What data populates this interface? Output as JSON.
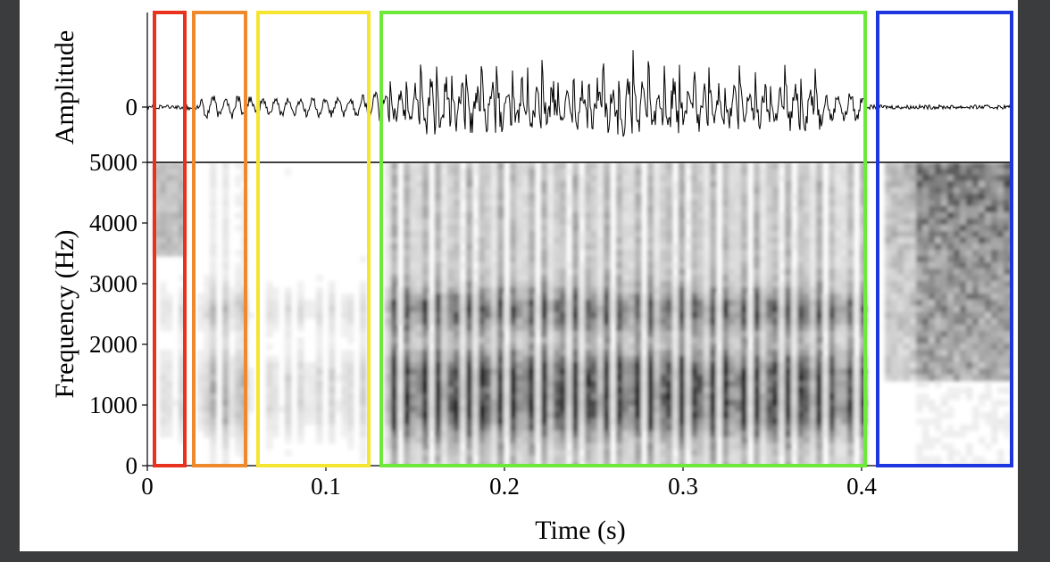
{
  "chart_data": [
    {
      "type": "line",
      "panel": "waveform",
      "ylabel": "Amplitude",
      "y_ticks": [
        {
          "value": 0,
          "label": "0"
        }
      ],
      "xlim": [
        0,
        0.485
      ],
      "ylim": [
        -1,
        1
      ],
      "segments": [
        {
          "t0": 0.0,
          "t1": 0.02,
          "amp": 0.04
        },
        {
          "t0": 0.02,
          "t1": 0.03,
          "amp": 0.06
        },
        {
          "t0": 0.03,
          "t1": 0.06,
          "amp": 0.35
        },
        {
          "t0": 0.06,
          "t1": 0.12,
          "amp": 0.28
        },
        {
          "t0": 0.12,
          "t1": 0.13,
          "amp": 0.45
        },
        {
          "t0": 0.13,
          "t1": 0.15,
          "amp": 0.6
        },
        {
          "t0": 0.15,
          "t1": 0.3,
          "amp": 1.0
        },
        {
          "t0": 0.3,
          "t1": 0.38,
          "amp": 0.8
        },
        {
          "t0": 0.38,
          "t1": 0.402,
          "amp": 0.45
        },
        {
          "t0": 0.402,
          "t1": 0.485,
          "amp": 0.04
        }
      ],
      "color": "#000000"
    },
    {
      "type": "heatmap",
      "panel": "spectrogram",
      "xlabel": "Time (s)",
      "ylabel": "Frequency (Hz)",
      "xlim": [
        0,
        0.485
      ],
      "ylim": [
        0,
        5000
      ],
      "x_ticks": [
        {
          "value": 0,
          "label": "0"
        },
        {
          "value": 0.1,
          "label": "0.1"
        },
        {
          "value": 0.2,
          "label": "0.2"
        },
        {
          "value": 0.3,
          "label": "0.3"
        },
        {
          "value": 0.4,
          "label": "0.4"
        }
      ],
      "y_ticks": [
        {
          "value": 0,
          "label": "0"
        },
        {
          "value": 1000,
          "label": "1000"
        },
        {
          "value": 2000,
          "label": "2000"
        },
        {
          "value": 3000,
          "label": "3000"
        },
        {
          "value": 4000,
          "label": "4000"
        },
        {
          "value": 5000,
          "label": "5000"
        }
      ],
      "formant_bands_hz": [
        1000,
        1600,
        2600
      ],
      "colormap": "grayscale",
      "highlight_regions": [
        {
          "name": "red",
          "t0": 0.003,
          "t1": 0.022,
          "color": "#e8321e"
        },
        {
          "name": "orange",
          "t0": 0.025,
          "t1": 0.056,
          "color": "#ef8a2c"
        },
        {
          "name": "yellow",
          "t0": 0.061,
          "t1": 0.125,
          "color": "#f5e52e"
        },
        {
          "name": "green",
          "t0": 0.13,
          "t1": 0.403,
          "color": "#6ee83a"
        },
        {
          "name": "blue",
          "t0": 0.408,
          "t1": 0.485,
          "color": "#1e36e0"
        }
      ]
    }
  ],
  "colors": {
    "background": "#3a3c3e",
    "figure": "#ffffff",
    "axis": "#000000"
  }
}
